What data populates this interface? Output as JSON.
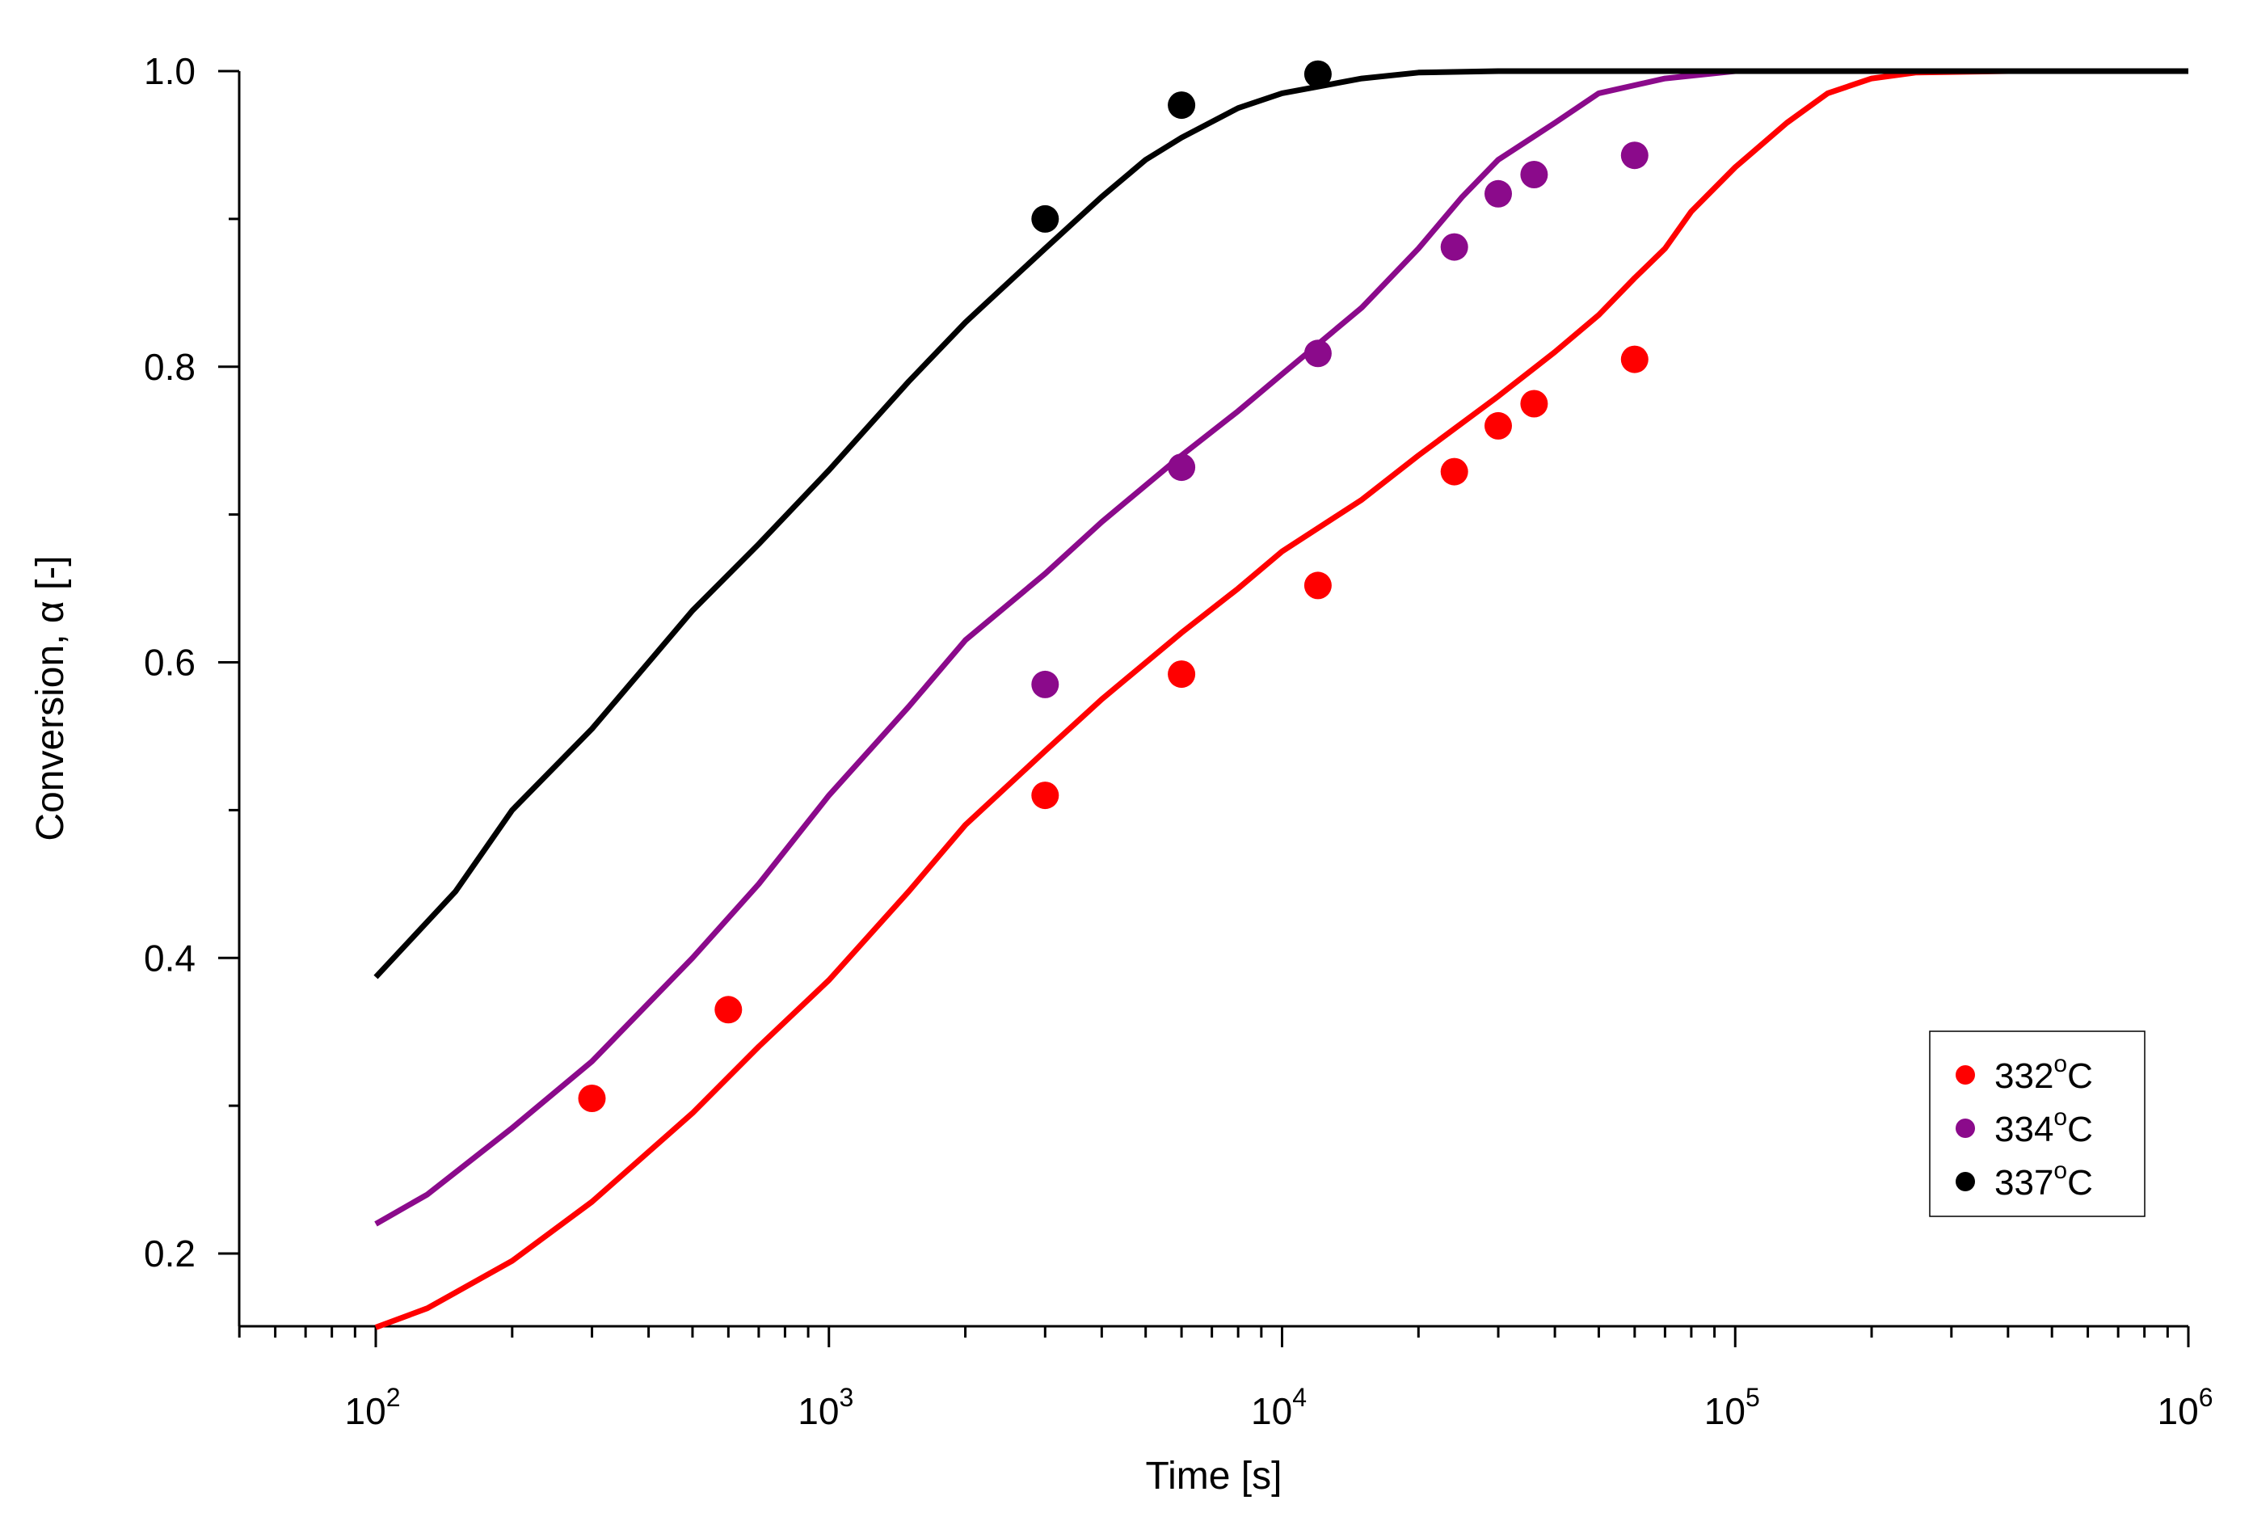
{
  "chart_data": {
    "type": "scatter",
    "title": "",
    "xlabel": "Time [s]",
    "ylabel": "Conversion, α [-]",
    "xscale": "log",
    "xlim": [
      50,
      1000000
    ],
    "ylim": [
      0.15,
      1.0
    ],
    "x_tick_labels": [
      {
        "base": "10",
        "exp": "2",
        "value": 100
      },
      {
        "base": "10",
        "exp": "3",
        "value": 1000
      },
      {
        "base": "10",
        "exp": "4",
        "value": 10000
      },
      {
        "base": "10",
        "exp": "5",
        "value": 100000
      },
      {
        "base": "10",
        "exp": "6",
        "value": 1000000
      }
    ],
    "y_tick_labels": [
      {
        "label": "0.2",
        "value": 0.2
      },
      {
        "label": "0.4",
        "value": 0.4
      },
      {
        "label": "0.6",
        "value": 0.6
      },
      {
        "label": "0.8",
        "value": 0.8
      },
      {
        "label": "1.0",
        "value": 1.0
      }
    ],
    "legend_position": "bottom-right",
    "series": [
      {
        "name": "332°C",
        "legend_base": "332",
        "legend_sup": "o",
        "legend_tail": "C",
        "color": "#ff0000",
        "points": [
          [
            300,
            0.305
          ],
          [
            600,
            0.365
          ],
          [
            3000,
            0.51
          ],
          [
            6000,
            0.592
          ],
          [
            12000,
            0.652
          ],
          [
            24000,
            0.729
          ],
          [
            30000,
            0.76
          ],
          [
            36000,
            0.775
          ],
          [
            60000,
            0.805
          ]
        ],
        "fit": [
          [
            100,
            0.15
          ],
          [
            130,
            0.163
          ],
          [
            200,
            0.195
          ],
          [
            300,
            0.235
          ],
          [
            500,
            0.295
          ],
          [
            700,
            0.34
          ],
          [
            1000,
            0.385
          ],
          [
            1500,
            0.445
          ],
          [
            2000,
            0.49
          ],
          [
            3000,
            0.54
          ],
          [
            4000,
            0.575
          ],
          [
            6000,
            0.62
          ],
          [
            8000,
            0.65
          ],
          [
            10000,
            0.675
          ],
          [
            15000,
            0.71
          ],
          [
            20000,
            0.74
          ],
          [
            30000,
            0.78
          ],
          [
            40000,
            0.81
          ],
          [
            50000,
            0.835
          ],
          [
            60000,
            0.86
          ],
          [
            70000,
            0.88
          ],
          [
            80000,
            0.905
          ],
          [
            100000,
            0.935
          ],
          [
            130000,
            0.965
          ],
          [
            160000,
            0.985
          ],
          [
            200000,
            0.995
          ],
          [
            250000,
            0.999
          ],
          [
            400000,
            1.0
          ],
          [
            1000000,
            1.0
          ]
        ]
      },
      {
        "name": "334°C",
        "legend_base": "334",
        "legend_sup": "o",
        "legend_tail": "C",
        "color": "#8b0a8b",
        "points": [
          [
            3000,
            0.585
          ],
          [
            6000,
            0.732
          ],
          [
            12000,
            0.809
          ],
          [
            24000,
            0.881
          ],
          [
            30000,
            0.917
          ],
          [
            36000,
            0.93
          ],
          [
            60000,
            0.943
          ]
        ],
        "fit": [
          [
            100,
            0.22
          ],
          [
            130,
            0.24
          ],
          [
            200,
            0.285
          ],
          [
            300,
            0.33
          ],
          [
            500,
            0.4
          ],
          [
            700,
            0.45
          ],
          [
            1000,
            0.51
          ],
          [
            1500,
            0.57
          ],
          [
            2000,
            0.615
          ],
          [
            3000,
            0.66
          ],
          [
            4000,
            0.695
          ],
          [
            6000,
            0.74
          ],
          [
            8000,
            0.77
          ],
          [
            10000,
            0.795
          ],
          [
            15000,
            0.84
          ],
          [
            20000,
            0.88
          ],
          [
            25000,
            0.915
          ],
          [
            30000,
            0.94
          ],
          [
            40000,
            0.965
          ],
          [
            50000,
            0.985
          ],
          [
            70000,
            0.995
          ],
          [
            100000,
            1.0
          ],
          [
            1000000,
            1.0
          ]
        ]
      },
      {
        "name": "337°C",
        "legend_base": "337",
        "legend_sup": "o",
        "legend_tail": "C",
        "color": "#000000",
        "points": [
          [
            3000,
            0.9
          ],
          [
            6000,
            0.977
          ],
          [
            12000,
            0.998
          ]
        ],
        "fit": [
          [
            100,
            0.387
          ],
          [
            150,
            0.445
          ],
          [
            200,
            0.5
          ],
          [
            300,
            0.555
          ],
          [
            400,
            0.6
          ],
          [
            500,
            0.635
          ],
          [
            700,
            0.68
          ],
          [
            1000,
            0.73
          ],
          [
            1500,
            0.79
          ],
          [
            2000,
            0.83
          ],
          [
            3000,
            0.88
          ],
          [
            4000,
            0.915
          ],
          [
            5000,
            0.94
          ],
          [
            6000,
            0.955
          ],
          [
            8000,
            0.975
          ],
          [
            10000,
            0.985
          ],
          [
            15000,
            0.995
          ],
          [
            20000,
            0.999
          ],
          [
            30000,
            1.0
          ],
          [
            1000000,
            1.0
          ]
        ]
      }
    ]
  }
}
